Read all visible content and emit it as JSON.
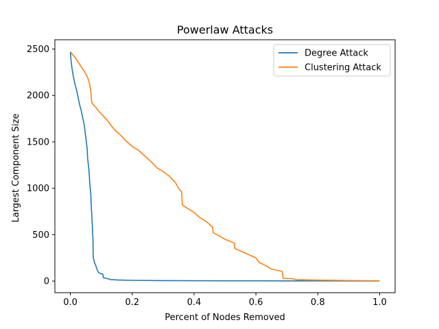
{
  "chart_data": {
    "type": "line",
    "title": "Powerlaw Attacks",
    "xlabel": "Percent of Nodes Removed",
    "ylabel": "Largest Component Size",
    "xlim": [
      -0.05,
      1.05
    ],
    "ylim": [
      -125,
      2600
    ],
    "xticks": [
      0.0,
      0.2,
      0.4,
      0.6,
      0.8,
      1.0
    ],
    "xtick_labels": [
      "0.0",
      "0.2",
      "0.4",
      "0.6",
      "0.8",
      "1.0"
    ],
    "yticks": [
      0,
      500,
      1000,
      1500,
      2000,
      2500
    ],
    "ytick_labels": [
      "0",
      "500",
      "1000",
      "1500",
      "2000",
      "2500"
    ],
    "grid": false,
    "legend_position": "top-right",
    "series": [
      {
        "name": "Degree Attack",
        "color": "#1f77b4",
        "points": [
          [
            0.0,
            2470
          ],
          [
            0.002,
            2390
          ],
          [
            0.005,
            2300
          ],
          [
            0.01,
            2200
          ],
          [
            0.015,
            2120
          ],
          [
            0.02,
            2060
          ],
          [
            0.025,
            1980
          ],
          [
            0.03,
            1900
          ],
          [
            0.035,
            1840
          ],
          [
            0.04,
            1760
          ],
          [
            0.045,
            1680
          ],
          [
            0.048,
            1600
          ],
          [
            0.051,
            1520
          ],
          [
            0.054,
            1440
          ],
          [
            0.056,
            1320
          ],
          [
            0.058,
            1260
          ],
          [
            0.06,
            1200
          ],
          [
            0.062,
            1100
          ],
          [
            0.064,
            1000
          ],
          [
            0.066,
            950
          ],
          [
            0.067,
            850
          ],
          [
            0.068,
            780
          ],
          [
            0.069,
            740
          ],
          [
            0.07,
            650
          ],
          [
            0.071,
            610
          ],
          [
            0.072,
            500
          ],
          [
            0.073,
            480
          ],
          [
            0.074,
            250
          ],
          [
            0.076,
            230
          ],
          [
            0.078,
            200
          ],
          [
            0.082,
            170
          ],
          [
            0.085,
            140
          ],
          [
            0.088,
            110
          ],
          [
            0.092,
            90
          ],
          [
            0.098,
            80
          ],
          [
            0.105,
            75
          ],
          [
            0.107,
            35
          ],
          [
            0.115,
            30
          ],
          [
            0.125,
            22
          ],
          [
            0.13,
            16
          ],
          [
            0.15,
            12
          ],
          [
            0.2,
            8
          ],
          [
            0.3,
            5
          ],
          [
            0.4,
            4
          ],
          [
            0.5,
            3
          ],
          [
            0.6,
            3
          ],
          [
            0.7,
            2
          ],
          [
            0.8,
            2
          ],
          [
            0.9,
            2
          ],
          [
            1.0,
            1
          ]
        ]
      },
      {
        "name": "Clustering Attack",
        "color": "#ff7f0e",
        "points": [
          [
            0.0,
            2470
          ],
          [
            0.005,
            2450
          ],
          [
            0.015,
            2410
          ],
          [
            0.025,
            2360
          ],
          [
            0.035,
            2310
          ],
          [
            0.045,
            2260
          ],
          [
            0.055,
            2200
          ],
          [
            0.062,
            2130
          ],
          [
            0.066,
            2050
          ],
          [
            0.068,
            1970
          ],
          [
            0.07,
            1915
          ],
          [
            0.075,
            1900
          ],
          [
            0.085,
            1860
          ],
          [
            0.1,
            1800
          ],
          [
            0.12,
            1730
          ],
          [
            0.14,
            1640
          ],
          [
            0.16,
            1580
          ],
          [
            0.18,
            1510
          ],
          [
            0.2,
            1450
          ],
          [
            0.22,
            1410
          ],
          [
            0.24,
            1350
          ],
          [
            0.26,
            1290
          ],
          [
            0.28,
            1220
          ],
          [
            0.3,
            1180
          ],
          [
            0.32,
            1130
          ],
          [
            0.34,
            1060
          ],
          [
            0.35,
            1000
          ],
          [
            0.36,
            960
          ],
          [
            0.362,
            820
          ],
          [
            0.38,
            780
          ],
          [
            0.4,
            740
          ],
          [
            0.42,
            680
          ],
          [
            0.44,
            640
          ],
          [
            0.46,
            580
          ],
          [
            0.462,
            520
          ],
          [
            0.48,
            490
          ],
          [
            0.5,
            450
          ],
          [
            0.53,
            410
          ],
          [
            0.532,
            350
          ],
          [
            0.56,
            310
          ],
          [
            0.58,
            280
          ],
          [
            0.6,
            250
          ],
          [
            0.61,
            200
          ],
          [
            0.63,
            170
          ],
          [
            0.65,
            130
          ],
          [
            0.67,
            115
          ],
          [
            0.685,
            105
          ],
          [
            0.688,
            30
          ],
          [
            0.7,
            28
          ],
          [
            0.72,
            25
          ],
          [
            0.73,
            15
          ],
          [
            0.8,
            10
          ],
          [
            0.9,
            6
          ],
          [
            1.0,
            3
          ]
        ]
      }
    ]
  }
}
